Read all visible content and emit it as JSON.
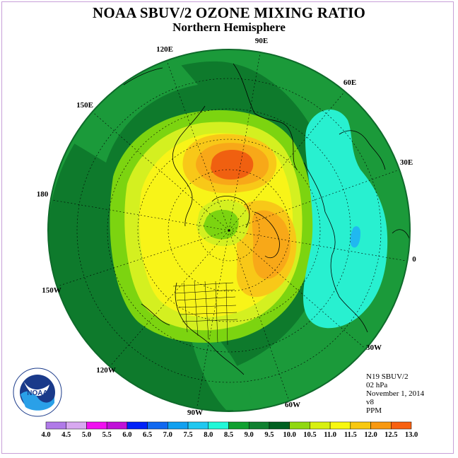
{
  "title": "NOAA SBUV/2 OZONE MIXING RATIO",
  "subtitle": "Northern Hemisphere",
  "longitude_labels": [
    "90E",
    "60E",
    "30E",
    "0",
    "30W",
    "60W",
    "90W",
    "120W",
    "150W",
    "180",
    "150E",
    "120E"
  ],
  "info": {
    "instrument": "N19 SBUV/2",
    "level": "02 hPa",
    "date": "November 1, 2014",
    "version": "v8",
    "units": "PPM"
  },
  "logo": {
    "text": "NOAA",
    "ring_text": "NATIONAL OCEANIC AND ATMOSPHERIC ADMINISTRATION",
    "ring_text_bottom": "U.S. DEPARTMENT OF COMMERCE"
  },
  "colorbar": {
    "ticks": [
      "4.0",
      "4.5",
      "5.0",
      "5.5",
      "6.0",
      "6.5",
      "7.0",
      "7.5",
      "8.0",
      "8.5",
      "9.0",
      "9.5",
      "10.0",
      "10.5",
      "11.0",
      "11.5",
      "12.0",
      "12.5",
      "13.0"
    ],
    "colors": [
      "#b07ae8",
      "#d8a8f0",
      "#f010f0",
      "#c010d8",
      "#0020f8",
      "#1068f0",
      "#10a0f0",
      "#20c8f0",
      "#20f8d8",
      "#10a030",
      "#108030",
      "#006020",
      "#90d810",
      "#d8f010",
      "#f8f810",
      "#f8c810",
      "#f89810",
      "#f86010",
      "#f80808",
      "#b04848",
      "#805038"
    ]
  },
  "colors": {
    "background_green": "#1b9a3a",
    "dark_green": "#0e7a2c",
    "light_green": "#7cd410",
    "yellow_green": "#d4f020",
    "yellow": "#f8f418",
    "orange": "#f8a818",
    "red_orange": "#f06010",
    "cyan": "#28f0d0",
    "blue": "#20b8f0"
  }
}
